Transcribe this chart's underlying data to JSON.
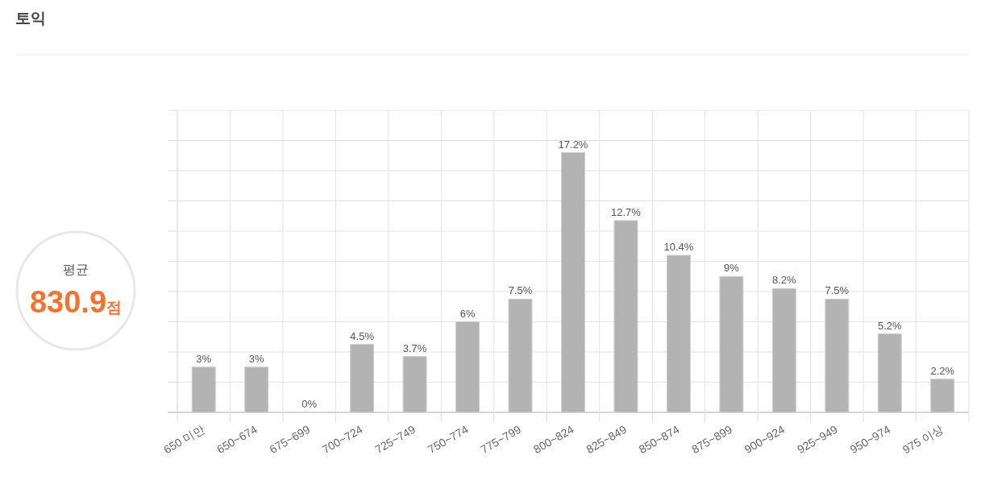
{
  "chart_data": {
    "type": "bar",
    "title": "토익",
    "categories": [
      "650 미만",
      "650~674",
      "675~699",
      "700~724",
      "725~749",
      "750~774",
      "775~799",
      "800~824",
      "825~849",
      "850~874",
      "875~899",
      "900~924",
      "925~949",
      "950~974",
      "975 이상"
    ],
    "values": [
      3,
      3,
      0,
      4.5,
      3.7,
      6,
      7.5,
      17.2,
      12.7,
      10.4,
      9,
      8.2,
      7.5,
      5.2,
      2.2
    ],
    "value_labels": [
      "3%",
      "3%",
      "0%",
      "4.5%",
      "3.7%",
      "6%",
      "7.5%",
      "17.2%",
      "12.7%",
      "10.4%",
      "9%",
      "8.2%",
      "7.5%",
      "5.2%",
      "2.2%"
    ],
    "color": "#b3b3b3",
    "ylim": [
      0,
      20
    ],
    "yticks": [
      {
        "value": 0,
        "label": null
      },
      {
        "value": 2,
        "label": null
      },
      {
        "value": 4,
        "label": null
      },
      {
        "value": 6,
        "label": null
      },
      {
        "value": 8,
        "label": null
      },
      {
        "value": 10,
        "label": null
      },
      {
        "value": 12,
        "label": null
      },
      {
        "value": 14,
        "label": null
      },
      {
        "value": 16,
        "label": null
      },
      {
        "value": 18,
        "label": null
      },
      {
        "value": 20,
        "label": null
      }
    ],
    "grid": true,
    "annotations": [
      "평균",
      "830.9점"
    ]
  }
}
